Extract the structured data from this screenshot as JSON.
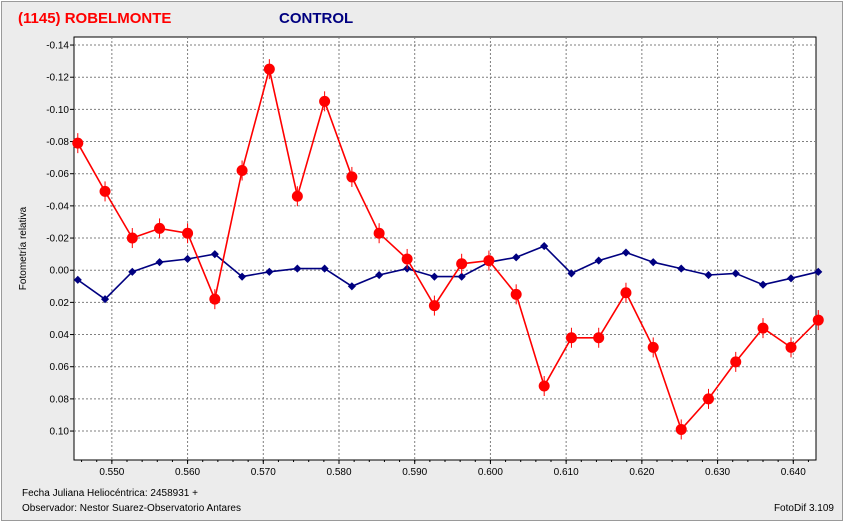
{
  "header": {
    "target_title": "(1145) ROBELMONTE",
    "control_title": "CONTROL"
  },
  "footer": {
    "date_line": "Fecha Juliana Heliocéntrica: 2458931 +",
    "observer_line": "Observador: Nestor Suarez-Observatorio Antares",
    "software": "FotoDif 3.109"
  },
  "colors": {
    "target": "#ff0000",
    "control": "#000080",
    "grid": "#7f7f7f",
    "plot_bg": "#ffffff",
    "frame_bg": "#ececec"
  },
  "chart_data": {
    "type": "scatter",
    "ylabel": "Fotometría relativa",
    "xlim": [
      0.545,
      0.643
    ],
    "ylim": [
      -0.145,
      0.118
    ],
    "y_inverted": true,
    "grid": true,
    "x_ticks": [
      0.55,
      0.56,
      0.57,
      0.58,
      0.59,
      0.6,
      0.61,
      0.62,
      0.63,
      0.64
    ],
    "x_tick_labels": [
      "0.550",
      "0.560",
      "0.570",
      "0.580",
      "0.590",
      "0.600",
      "0.610",
      "0.620",
      "0.630",
      "0.640"
    ],
    "y_ticks": [
      -0.14,
      -0.12,
      -0.1,
      -0.08,
      -0.06,
      -0.04,
      -0.02,
      0.0,
      0.02,
      0.04,
      0.06,
      0.08,
      0.1
    ],
    "y_tick_labels": [
      "-0.14",
      "-0.12",
      "-0.10",
      "-0.08",
      "-0.06",
      "-0.04",
      "-0.02",
      "0.00",
      "0.02",
      "0.04",
      "0.06",
      "0.08",
      "0.10"
    ],
    "series": [
      {
        "name": "(1145) ROBELMONTE",
        "x": [
          0.5455,
          0.5491,
          0.5527,
          0.5563,
          0.56,
          0.5636,
          0.5672,
          0.5708,
          0.5745,
          0.5781,
          0.5817,
          0.5853,
          0.589,
          0.5926,
          0.5962,
          0.5998,
          0.6034,
          0.6071,
          0.6107,
          0.6143,
          0.6179,
          0.6215,
          0.6252,
          0.6288,
          0.6324,
          0.636,
          0.6397,
          0.6433
        ],
        "y": [
          -0.079,
          -0.049,
          -0.02,
          -0.026,
          -0.023,
          0.018,
          -0.062,
          -0.125,
          -0.046,
          -0.105,
          -0.058,
          -0.023,
          -0.007,
          0.022,
          -0.004,
          -0.006,
          0.015,
          0.072,
          0.042,
          0.042,
          0.014,
          0.048,
          0.099,
          0.08,
          0.057,
          0.036,
          0.048,
          0.031
        ]
      },
      {
        "name": "CONTROL",
        "x": [
          0.5455,
          0.5491,
          0.5527,
          0.5563,
          0.56,
          0.5636,
          0.5672,
          0.5708,
          0.5745,
          0.5781,
          0.5817,
          0.5853,
          0.589,
          0.5926,
          0.5962,
          0.5998,
          0.6034,
          0.6071,
          0.6107,
          0.6143,
          0.6179,
          0.6215,
          0.6252,
          0.6288,
          0.6324,
          0.636,
          0.6397,
          0.6433
        ],
        "y": [
          0.006,
          0.018,
          0.001,
          -0.005,
          -0.007,
          -0.01,
          0.004,
          0.001,
          -0.001,
          -0.001,
          0.01,
          0.003,
          -0.001,
          0.004,
          0.004,
          -0.005,
          -0.008,
          -0.015,
          0.002,
          -0.006,
          -0.011,
          -0.005,
          -0.001,
          0.003,
          0.002,
          0.009,
          0.005,
          0.001
        ]
      }
    ]
  }
}
